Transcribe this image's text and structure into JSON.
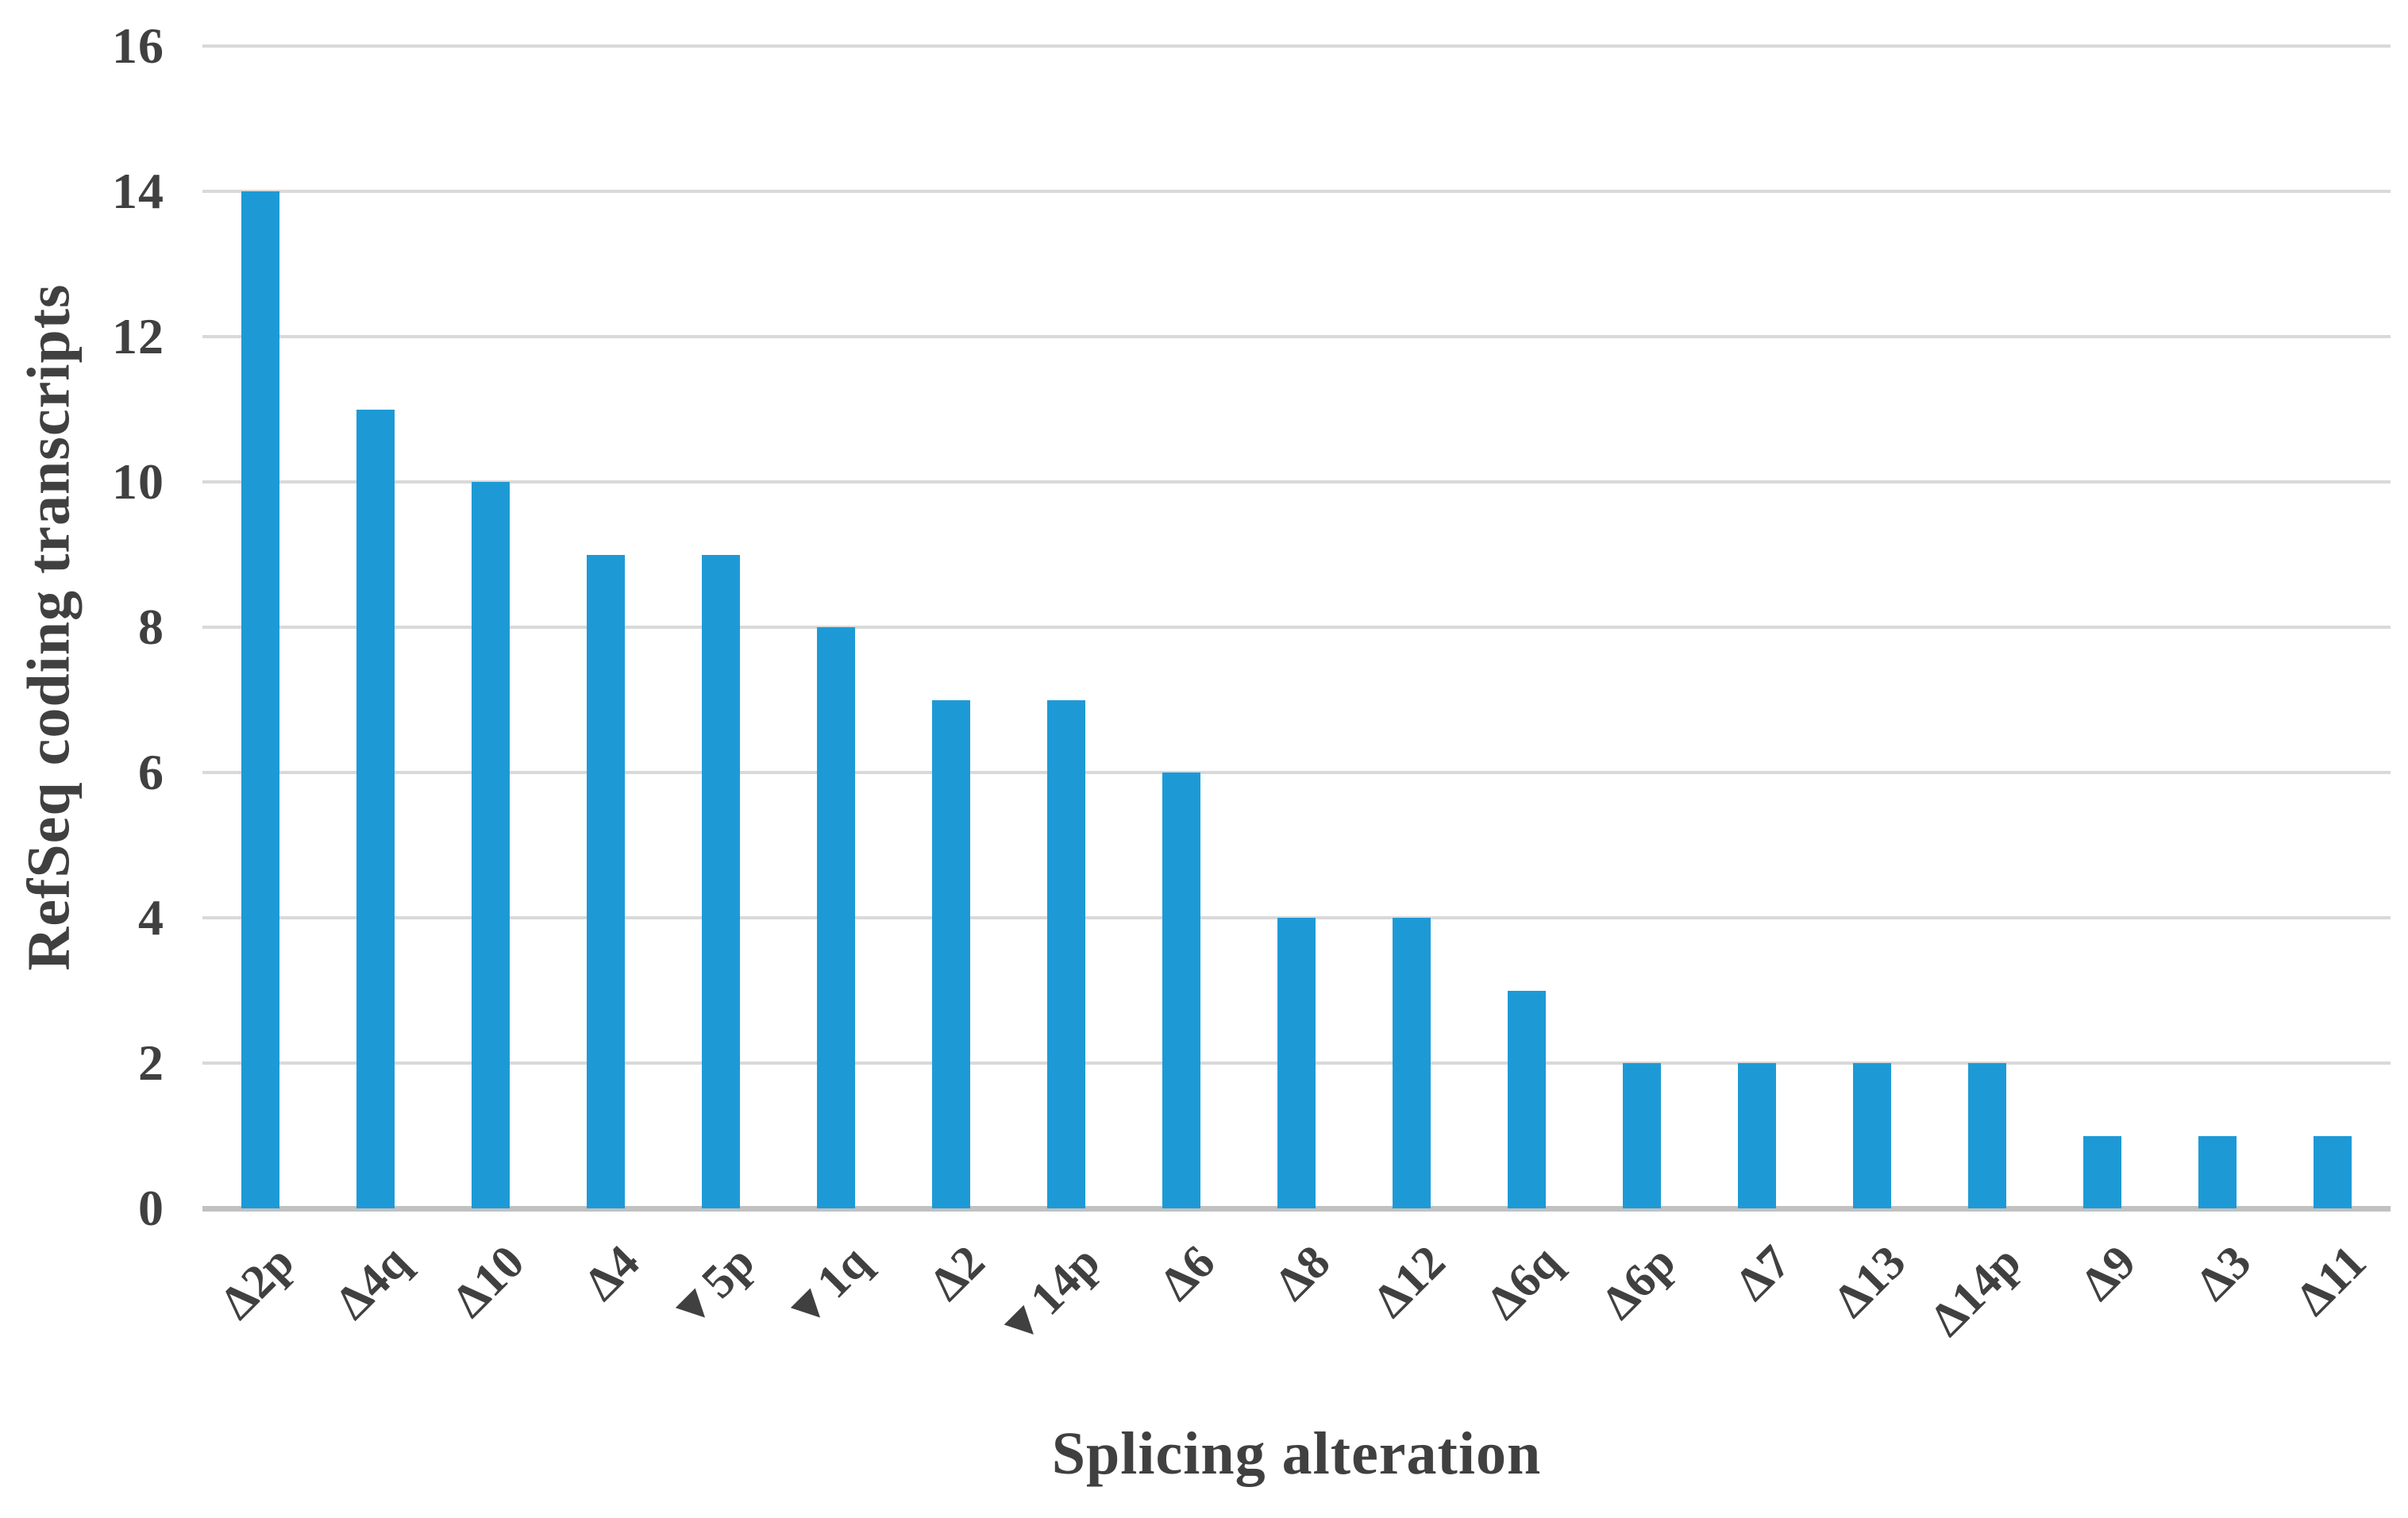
{
  "figure": {
    "background_color": "#ffffff",
    "bar_color": "#1d9ad6",
    "gridline_color": "#d9d9d9",
    "axis_line_color": "#c1c1c1",
    "text_color": "#404040"
  },
  "chart_data": {
    "type": "bar",
    "title": "",
    "xlabel": "Splicing alteration",
    "ylabel": "RefSeq coding transcripts",
    "categories": [
      "Δ2p",
      "Δ4q",
      "Δ10",
      "Δ4",
      "▼5p",
      "▼1q",
      "Δ2",
      "▼14p",
      "Δ6",
      "Δ8",
      "Δ12",
      "Δ6q",
      "Δ6p",
      "Δ7",
      "Δ13",
      "Δ14p",
      "Δ9",
      "Δ3",
      "Δ11"
    ],
    "values": [
      14,
      11,
      10,
      9,
      9,
      8,
      7,
      7,
      6,
      4,
      4,
      3,
      2,
      2,
      2,
      2,
      1,
      1,
      1
    ],
    "yticks": [
      0,
      2,
      4,
      6,
      8,
      10,
      12,
      14,
      16
    ],
    "ylim": [
      0,
      16
    ],
    "grid": "horizontal",
    "legend": "none"
  }
}
